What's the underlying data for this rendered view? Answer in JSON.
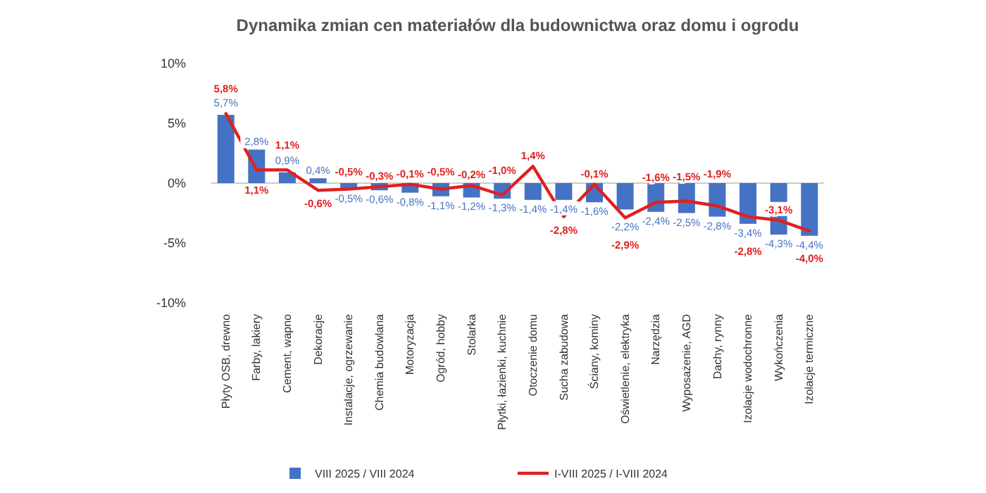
{
  "chart_data": {
    "type": "bar",
    "title": "Dynamika zmian cen materiałów dla budownictwa oraz domu i ogrodu",
    "categories": [
      "Płyty OSB, drewno",
      "Farby, lakiery",
      "Cement, wapno",
      "Dekoracje",
      "Instalacje, ogrzewanie",
      "Chemia budowlana",
      "Motoryzacja",
      "Ogród, hobby",
      "Stolarka",
      "Płytki, łazienki, kuchnie",
      "Otoczenie domu",
      "Sucha zabudowa",
      "Ściany, kominy",
      "Oświetlenie, elektryka",
      "Narzędzia",
      "Wyposażenie, AGD",
      "Dachy, rynny",
      "Izolacje wodochronne",
      "Wykończenia",
      "Izolacje termiczne"
    ],
    "series": [
      {
        "name": "VIII 2025 / VIII 2024",
        "color": "#4472c4",
        "values": [
          5.7,
          2.8,
          0.9,
          0.4,
          -0.5,
          -0.6,
          -0.8,
          -1.1,
          -1.2,
          -1.3,
          -1.4,
          -1.4,
          -1.6,
          -2.2,
          -2.4,
          -2.5,
          -2.8,
          -3.4,
          -4.3,
          -4.4
        ],
        "value_labels": [
          "5,7%",
          "2,8%",
          "0,9%",
          "0,4%",
          "-0,5%",
          "-0,6%",
          "-0,8%",
          "-1,1%",
          "-1,2%",
          "-1,3%",
          "-1,4%",
          "-1,4%",
          "-1,6%",
          "-2,2%",
          "-2,4%",
          "-2,5%",
          "-2,8%",
          "-3,4%",
          "-4,3%",
          "-4,4%"
        ]
      },
      {
        "name": "I-VIII 2025 / I-VIII 2024",
        "type": "line",
        "color": "#e02020",
        "values": [
          5.8,
          1.1,
          1.1,
          -0.6,
          -0.5,
          -0.3,
          -0.1,
          -0.5,
          -0.2,
          -1.0,
          1.4,
          -2.8,
          -0.1,
          -2.9,
          -1.6,
          -1.5,
          -1.9,
          -2.8,
          -3.1,
          -4.0
        ],
        "value_labels": [
          "5,8%",
          "1,1%",
          "1,1%",
          "-0,6%",
          "-0,5%",
          "-0,3%",
          "-0,1%",
          "-0,5%",
          "-0,2%",
          "-1,0%",
          "1,4%",
          "-2,8%",
          "-0,1%",
          "-2,9%",
          "-1,6%",
          "-1,5%",
          "-1,9%",
          "-2,8%",
          "-3,1%",
          "-4,0%"
        ]
      }
    ],
    "ylim": [
      -10,
      10
    ],
    "yticks": [
      {
        "value": -10,
        "label": "-10%"
      },
      {
        "value": -5,
        "label": "-5%"
      },
      {
        "value": 0,
        "label": "0%"
      },
      {
        "value": 5,
        "label": "5%"
      },
      {
        "value": 10,
        "label": "10%"
      }
    ],
    "legend": "bottom"
  }
}
